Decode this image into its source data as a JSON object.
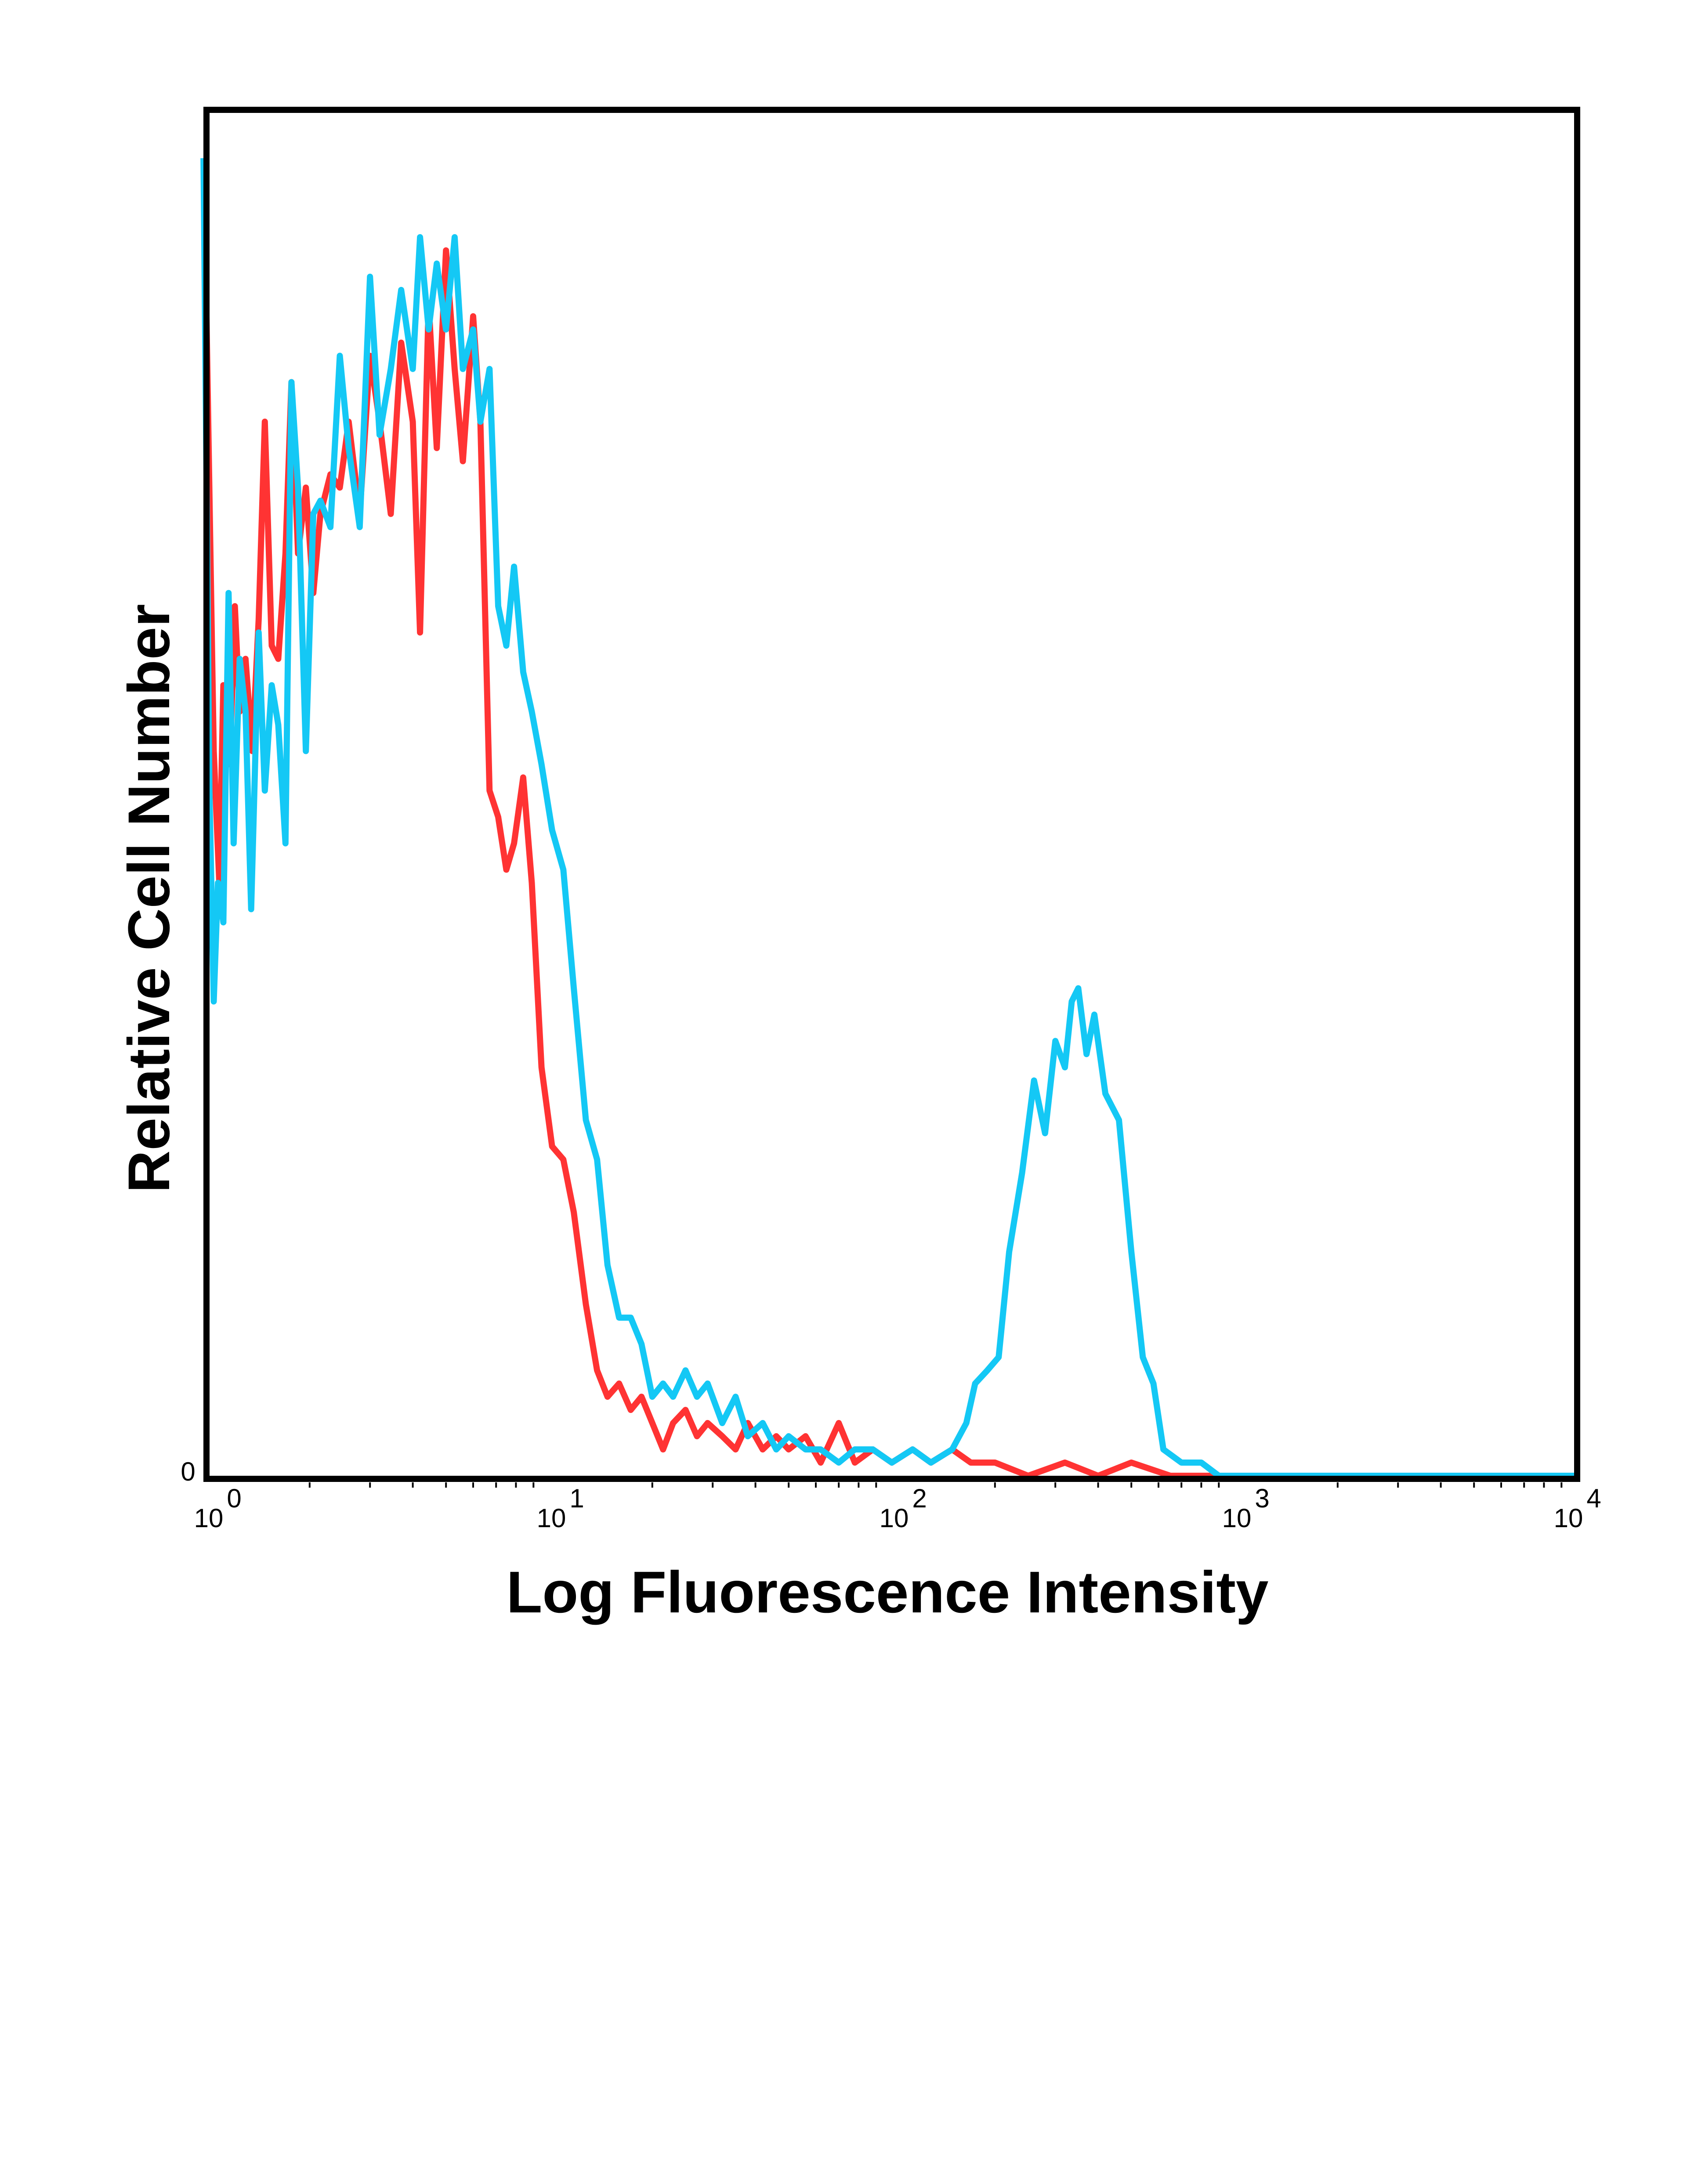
{
  "chart_data": {
    "type": "line",
    "title": "",
    "xlabel": "Log Fluorescence Intensity",
    "ylabel": "Relative Cell Number",
    "x_scale": "log",
    "xlim": [
      1,
      10000
    ],
    "ylim": [
      0,
      100
    ],
    "y_tick_label": "0",
    "x_ticks": [
      {
        "value": 1,
        "base": "10",
        "exp": "0"
      },
      {
        "value": 10,
        "base": "10",
        "exp": "1"
      },
      {
        "value": 100,
        "base": "10",
        "exp": "2"
      },
      {
        "value": 1000,
        "base": "10",
        "exp": "3"
      },
      {
        "value": 10000,
        "base": "10",
        "exp": "4"
      }
    ],
    "grid": false,
    "legend": "none",
    "series": [
      {
        "color": "#ff3333",
        "points": [
          [
            1.0,
            88
          ],
          [
            1.05,
            55
          ],
          [
            1.09,
            45
          ],
          [
            1.12,
            60
          ],
          [
            1.17,
            54
          ],
          [
            1.21,
            66
          ],
          [
            1.25,
            58
          ],
          [
            1.3,
            62
          ],
          [
            1.36,
            55
          ],
          [
            1.42,
            65
          ],
          [
            1.48,
            80
          ],
          [
            1.55,
            63
          ],
          [
            1.62,
            62
          ],
          [
            1.7,
            70
          ],
          [
            1.77,
            83
          ],
          [
            1.85,
            70
          ],
          [
            1.95,
            75
          ],
          [
            2.05,
            67
          ],
          [
            2.15,
            73
          ],
          [
            2.3,
            76
          ],
          [
            2.45,
            75
          ],
          [
            2.6,
            80
          ],
          [
            2.8,
            73
          ],
          [
            3.0,
            85
          ],
          [
            3.2,
            80
          ],
          [
            3.45,
            73
          ],
          [
            3.7,
            86
          ],
          [
            4.0,
            80
          ],
          [
            4.2,
            64
          ],
          [
            4.45,
            89
          ],
          [
            4.7,
            78
          ],
          [
            5.0,
            93
          ],
          [
            5.3,
            84
          ],
          [
            5.6,
            77
          ],
          [
            6.0,
            88
          ],
          [
            6.3,
            80
          ],
          [
            6.7,
            52
          ],
          [
            7.1,
            50
          ],
          [
            7.5,
            46
          ],
          [
            7.9,
            48
          ],
          [
            8.4,
            53
          ],
          [
            8.9,
            45
          ],
          [
            9.5,
            31
          ],
          [
            10.2,
            25
          ],
          [
            11.0,
            24
          ],
          [
            11.8,
            20
          ],
          [
            12.8,
            13
          ],
          [
            13.8,
            8
          ],
          [
            14.8,
            6
          ],
          [
            16.0,
            7
          ],
          [
            17.3,
            5
          ],
          [
            18.6,
            6
          ],
          [
            20.0,
            4
          ],
          [
            21.5,
            2
          ],
          [
            23.0,
            4
          ],
          [
            25.0,
            5
          ],
          [
            27.0,
            3
          ],
          [
            29.0,
            4
          ],
          [
            32.0,
            3
          ],
          [
            35.0,
            2
          ],
          [
            38.0,
            4
          ],
          [
            42.0,
            2
          ],
          [
            46.0,
            3
          ],
          [
            50.0,
            2
          ],
          [
            56.0,
            3
          ],
          [
            62.0,
            1
          ],
          [
            70.0,
            4
          ],
          [
            78.0,
            1
          ],
          [
            88.0,
            2
          ],
          [
            100.0,
            1
          ],
          [
            115.0,
            2
          ],
          [
            130.0,
            1
          ],
          [
            150.0,
            2
          ],
          [
            170.0,
            1
          ],
          [
            200.0,
            1
          ],
          [
            250.0,
            0
          ],
          [
            320.0,
            1
          ],
          [
            400.0,
            0
          ],
          [
            500.0,
            1
          ],
          [
            650.0,
            0
          ],
          [
            800.0,
            0
          ],
          [
            1000.0,
            0
          ],
          [
            2000.0,
            0
          ],
          [
            5000.0,
            0
          ],
          [
            10000.0,
            0
          ]
        ]
      },
      {
        "color": "#14c8f5",
        "points": [
          [
            0.98,
            100
          ],
          [
            1.02,
            52
          ],
          [
            1.05,
            36
          ],
          [
            1.08,
            45
          ],
          [
            1.12,
            42
          ],
          [
            1.16,
            67
          ],
          [
            1.2,
            48
          ],
          [
            1.25,
            62
          ],
          [
            1.3,
            58
          ],
          [
            1.35,
            43
          ],
          [
            1.42,
            64
          ],
          [
            1.48,
            52
          ],
          [
            1.55,
            60
          ],
          [
            1.62,
            57
          ],
          [
            1.7,
            48
          ],
          [
            1.77,
            83
          ],
          [
            1.85,
            75
          ],
          [
            1.95,
            55
          ],
          [
            2.05,
            73
          ],
          [
            2.15,
            74
          ],
          [
            2.3,
            72
          ],
          [
            2.45,
            85
          ],
          [
            2.6,
            78
          ],
          [
            2.8,
            72
          ],
          [
            3.0,
            91
          ],
          [
            3.2,
            79
          ],
          [
            3.45,
            84
          ],
          [
            3.7,
            90
          ],
          [
            4.0,
            84
          ],
          [
            4.2,
            94
          ],
          [
            4.45,
            87
          ],
          [
            4.7,
            92
          ],
          [
            5.0,
            87
          ],
          [
            5.3,
            94
          ],
          [
            5.6,
            84
          ],
          [
            6.0,
            87
          ],
          [
            6.3,
            80
          ],
          [
            6.7,
            84
          ],
          [
            7.1,
            66
          ],
          [
            7.5,
            63
          ],
          [
            7.9,
            69
          ],
          [
            8.4,
            61
          ],
          [
            8.9,
            58
          ],
          [
            9.5,
            54
          ],
          [
            10.2,
            49
          ],
          [
            11.0,
            46
          ],
          [
            11.8,
            37
          ],
          [
            12.8,
            27
          ],
          [
            13.8,
            24
          ],
          [
            14.8,
            16
          ],
          [
            16.0,
            12
          ],
          [
            17.3,
            12
          ],
          [
            18.6,
            10
          ],
          [
            20.0,
            6
          ],
          [
            21.5,
            7
          ],
          [
            23.0,
            6
          ],
          [
            25.0,
            8
          ],
          [
            27.0,
            6
          ],
          [
            29.0,
            7
          ],
          [
            32.0,
            4
          ],
          [
            35.0,
            6
          ],
          [
            38.0,
            3
          ],
          [
            42.0,
            4
          ],
          [
            46.0,
            2
          ],
          [
            50.0,
            3
          ],
          [
            56.0,
            2
          ],
          [
            62.0,
            2
          ],
          [
            70.0,
            1
          ],
          [
            78.0,
            2
          ],
          [
            88.0,
            2
          ],
          [
            100.0,
            1
          ],
          [
            115.0,
            2
          ],
          [
            130.0,
            1
          ],
          [
            150.0,
            2
          ],
          [
            165.0,
            4
          ],
          [
            175.0,
            7
          ],
          [
            190.0,
            8
          ],
          [
            205.0,
            9
          ],
          [
            220.0,
            17
          ],
          [
            240.0,
            23
          ],
          [
            260.0,
            30
          ],
          [
            280.0,
            26
          ],
          [
            300.0,
            33
          ],
          [
            320.0,
            31
          ],
          [
            335.0,
            36
          ],
          [
            350.0,
            37
          ],
          [
            370.0,
            32
          ],
          [
            390.0,
            35
          ],
          [
            420.0,
            29
          ],
          [
            460.0,
            27
          ],
          [
            500.0,
            17
          ],
          [
            540.0,
            9
          ],
          [
            580.0,
            7
          ],
          [
            620.0,
            2
          ],
          [
            700.0,
            1
          ],
          [
            800.0,
            1
          ],
          [
            900.0,
            0
          ],
          [
            1000.0,
            0
          ],
          [
            2000.0,
            0
          ],
          [
            5000.0,
            0
          ],
          [
            10000.0,
            0
          ]
        ]
      }
    ]
  }
}
